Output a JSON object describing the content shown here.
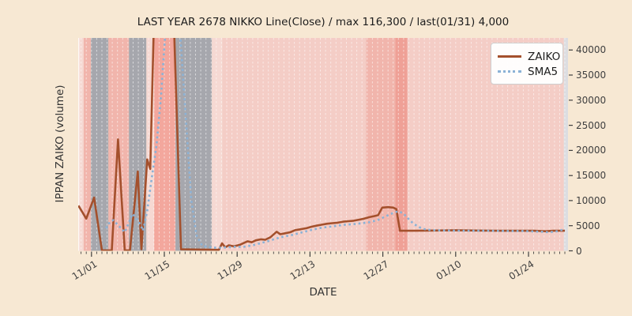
{
  "title": "LAST YEAR 2678 NIKKO Line(Close) / max 116,300 / last(01/31) 4,000",
  "axes": {
    "x_label": "DATE",
    "y_label": "IPPAN ZAIKO (volume)",
    "x_tick_labels": [
      "11/01",
      "11/15",
      "11/29",
      "12/13",
      "12/27",
      "01/10",
      "01/24"
    ],
    "y_tick_labels": [
      "0",
      "5000",
      "10000",
      "15000",
      "20000",
      "25000",
      "30000",
      "35000",
      "40000"
    ]
  },
  "legend": {
    "entries": [
      {
        "label": "ZAIKO",
        "style": "solid",
        "color": "#a4502c"
      },
      {
        "label": "SMA5",
        "style": "dotted",
        "color": "#8bb2d6"
      }
    ]
  },
  "chart_data": {
    "type": "line",
    "title": "LAST YEAR 2678 NIKKO Line(Close) / max 116,300 / last(01/31) 4,000",
    "xlabel": "DATE",
    "ylabel": "IPPAN ZAIKO (volume)",
    "x_unit": "days since 11/01",
    "x_domain_days": [
      -2.55,
      91.6
    ],
    "x_tick_days": [
      0,
      14,
      28,
      42,
      56,
      70,
      84
    ],
    "x_tick_labels": [
      "11/01",
      "11/15",
      "11/29",
      "12/13",
      "12/27",
      "01/10",
      "01/24"
    ],
    "ylim": [
      0,
      42400
    ],
    "y_ticks": [
      0,
      5000,
      10000,
      15000,
      20000,
      25000,
      30000,
      35000,
      40000
    ],
    "grid": "vertical white dashed line per day",
    "legend_position": "upper right",
    "stats": {
      "max": 116300,
      "last_date": "01/31",
      "last_value": 4000
    },
    "series": [
      {
        "name": "ZAIKO",
        "style": "solid",
        "color_key": "zaiko_line",
        "points": [
          [
            -2.5,
            9000
          ],
          [
            -1,
            6400
          ],
          [
            0.5,
            10600
          ],
          [
            2,
            100
          ],
          [
            3.9,
            100
          ],
          [
            5.1,
            22200
          ],
          [
            6.4,
            100
          ],
          [
            7.4,
            100
          ],
          [
            8.9,
            15800
          ],
          [
            9.6,
            300
          ],
          [
            10.7,
            18200
          ],
          [
            11.3,
            16300
          ],
          [
            13.7,
            116300
          ],
          [
            17.2,
            300
          ],
          [
            24.5,
            200
          ],
          [
            25.1,
            1500
          ],
          [
            25.7,
            700
          ],
          [
            26.4,
            1100
          ],
          [
            27.4,
            900
          ],
          [
            28.5,
            1200
          ],
          [
            30,
            1900
          ],
          [
            30.8,
            1700
          ],
          [
            31.6,
            2100
          ],
          [
            32.6,
            2300
          ],
          [
            33.4,
            2200
          ],
          [
            34.4,
            2700
          ],
          [
            35.6,
            3800
          ],
          [
            36.3,
            3300
          ],
          [
            37.2,
            3500
          ],
          [
            38.2,
            3700
          ],
          [
            39.1,
            4100
          ],
          [
            40.2,
            4300
          ],
          [
            41.3,
            4500
          ],
          [
            42.3,
            4800
          ],
          [
            43.2,
            5000
          ],
          [
            44.3,
            5200
          ],
          [
            45.3,
            5400
          ],
          [
            46.3,
            5500
          ],
          [
            47.3,
            5600
          ],
          [
            48.4,
            5800
          ],
          [
            49.4,
            5900
          ],
          [
            50.4,
            6000
          ],
          [
            51.4,
            6200
          ],
          [
            52.4,
            6400
          ],
          [
            53.4,
            6700
          ],
          [
            54.3,
            6900
          ],
          [
            55.1,
            7100
          ],
          [
            55.9,
            8600
          ],
          [
            57,
            8700
          ],
          [
            58,
            8600
          ],
          [
            58.6,
            8300
          ],
          [
            59.3,
            4000
          ],
          [
            62,
            4000
          ],
          [
            66,
            4050
          ],
          [
            70,
            4100
          ],
          [
            74,
            4050
          ],
          [
            78,
            4000
          ],
          [
            82,
            4000
          ],
          [
            85,
            4000
          ],
          [
            87.3,
            3900
          ],
          [
            88.8,
            4000
          ],
          [
            91,
            4000
          ]
        ]
      },
      {
        "name": "SMA5",
        "style": "dotted",
        "color_key": "sma5_line",
        "points": [
          [
            2.8,
            4500
          ],
          [
            3.6,
            5800
          ],
          [
            4.2,
            6100
          ],
          [
            5.4,
            4800
          ],
          [
            6.4,
            3700
          ],
          [
            7.9,
            7400
          ],
          [
            9.4,
            5300
          ],
          [
            9.9,
            4000
          ],
          [
            10.7,
            7900
          ],
          [
            11.4,
            13200
          ],
          [
            12.5,
            21000
          ],
          [
            13.3,
            30000
          ],
          [
            14.3,
            45000
          ],
          [
            15.8,
            48000
          ],
          [
            17,
            44000
          ],
          [
            17.9,
            30000
          ],
          [
            19.2,
            10000
          ],
          [
            20.2,
            3000
          ],
          [
            21.3,
            1000
          ],
          [
            22.8,
            700
          ],
          [
            24.3,
            600
          ],
          [
            26,
            700
          ],
          [
            27.7,
            800
          ],
          [
            29.3,
            800
          ],
          [
            31,
            1100
          ],
          [
            32.4,
            1500
          ],
          [
            33.9,
            1900
          ],
          [
            35.4,
            2400
          ],
          [
            36.8,
            2800
          ],
          [
            38.3,
            3100
          ],
          [
            39.8,
            3500
          ],
          [
            41.3,
            3900
          ],
          [
            42.8,
            4300
          ],
          [
            44.3,
            4600
          ],
          [
            45.8,
            4800
          ],
          [
            47.3,
            5000
          ],
          [
            48.8,
            5200
          ],
          [
            50.3,
            5300
          ],
          [
            52,
            5500
          ],
          [
            53.4,
            5700
          ],
          [
            55,
            6100
          ],
          [
            56.4,
            6800
          ],
          [
            57.9,
            7500
          ],
          [
            59,
            7900
          ],
          [
            60,
            7400
          ],
          [
            61,
            6300
          ],
          [
            61.9,
            5400
          ],
          [
            63,
            4700
          ],
          [
            64.1,
            4300
          ],
          [
            65.4,
            4100
          ],
          [
            68,
            4050
          ],
          [
            72,
            4000
          ],
          [
            76,
            4000
          ],
          [
            80,
            3950
          ],
          [
            83,
            3950
          ],
          [
            86.5,
            3800
          ],
          [
            88,
            3700
          ],
          [
            89.5,
            3900
          ],
          [
            91,
            4300
          ]
        ]
      }
    ],
    "background_bands_days": [
      {
        "from": -2.55,
        "to": -1.5,
        "color": "pink_light"
      },
      {
        "from": -1.5,
        "to": -0.1,
        "color": "pink_med"
      },
      {
        "from": -0.1,
        "to": 3.25,
        "color": "gray"
      },
      {
        "from": 3.25,
        "to": 7.2,
        "color": "pink_med"
      },
      {
        "from": 7.2,
        "to": 10.55,
        "color": "gray"
      },
      {
        "from": 10.55,
        "to": 12.05,
        "color": "pink_light"
      },
      {
        "from": 12.05,
        "to": 16.15,
        "color": "salmon"
      },
      {
        "from": 16.15,
        "to": 23.15,
        "color": "gray"
      },
      {
        "from": 23.15,
        "to": 25.15,
        "color": "pink_light"
      },
      {
        "from": 25.15,
        "to": 52.8,
        "color": "pink_base"
      },
      {
        "from": 52.8,
        "to": 58.4,
        "color": "pink_med"
      },
      {
        "from": 58.4,
        "to": 60.7,
        "color": "salmon_dark"
      },
      {
        "from": 60.7,
        "to": 90.8,
        "color": "pink_base"
      },
      {
        "from": 90.8,
        "to": 91.6,
        "color": "gray_light"
      }
    ],
    "colors": {
      "figure_bg": "#f7e8d3",
      "pink_base": "#f4cdc6",
      "pink_light": "#f6d9d3",
      "pink_med": "#f1b5ac",
      "salmon": "#f3a79d",
      "salmon_dark": "#efa096",
      "gray": "#a6a7ad",
      "gray_light": "#dcdde1",
      "zaiko_line": "#a4502c",
      "sma5_line": "#8bb2d6",
      "grid_line": "rgba(255,255,255,0.55)",
      "tick": "#3f3f3f"
    }
  }
}
